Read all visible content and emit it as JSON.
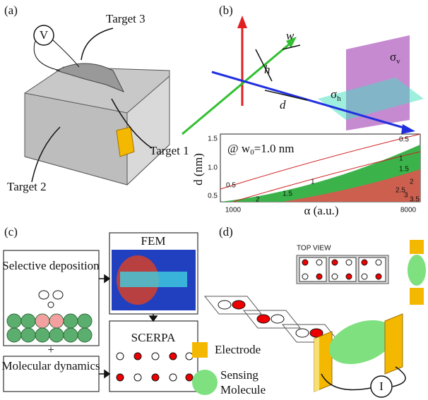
{
  "panels": {
    "a": {
      "label": "(a)",
      "voltmeter": "V",
      "target3": "Target 3",
      "target1": "Target 1",
      "target2": "Target 2"
    },
    "b": {
      "label": "(b)",
      "w": "w",
      "h": "h",
      "d": "d",
      "sigma_v": {
        "symbol": "σ",
        "sub": "v"
      },
      "sigma_h": {
        "symbol": "σ",
        "sub": "h"
      },
      "plot": {
        "annotation": [
          "@ w",
          "0",
          "=1.0 nm"
        ],
        "ylabel": "d (nm)",
        "xlabel": "α (a.u.)",
        "yticks": [
          "1.5",
          "1.0",
          "0.5"
        ],
        "xticks": [
          "1000",
          "8000"
        ],
        "contour_labels": [
          "0.5",
          "0.5",
          "1",
          "1",
          "1.5",
          "1.5",
          "2",
          "2",
          "2.5",
          "3",
          "3.5"
        ]
      }
    },
    "c": {
      "label": "(c)",
      "selective": "Selective deposition",
      "fem": "FEM",
      "plus": "+",
      "md": "Molecular dynamics",
      "scerpa": "SCERPA"
    },
    "d": {
      "label": "(d)",
      "top_view": "TOP VIEW",
      "electrode": "Electrode",
      "sensing": "Sensing",
      "molecule": "Molecule",
      "current": "I"
    }
  }
}
